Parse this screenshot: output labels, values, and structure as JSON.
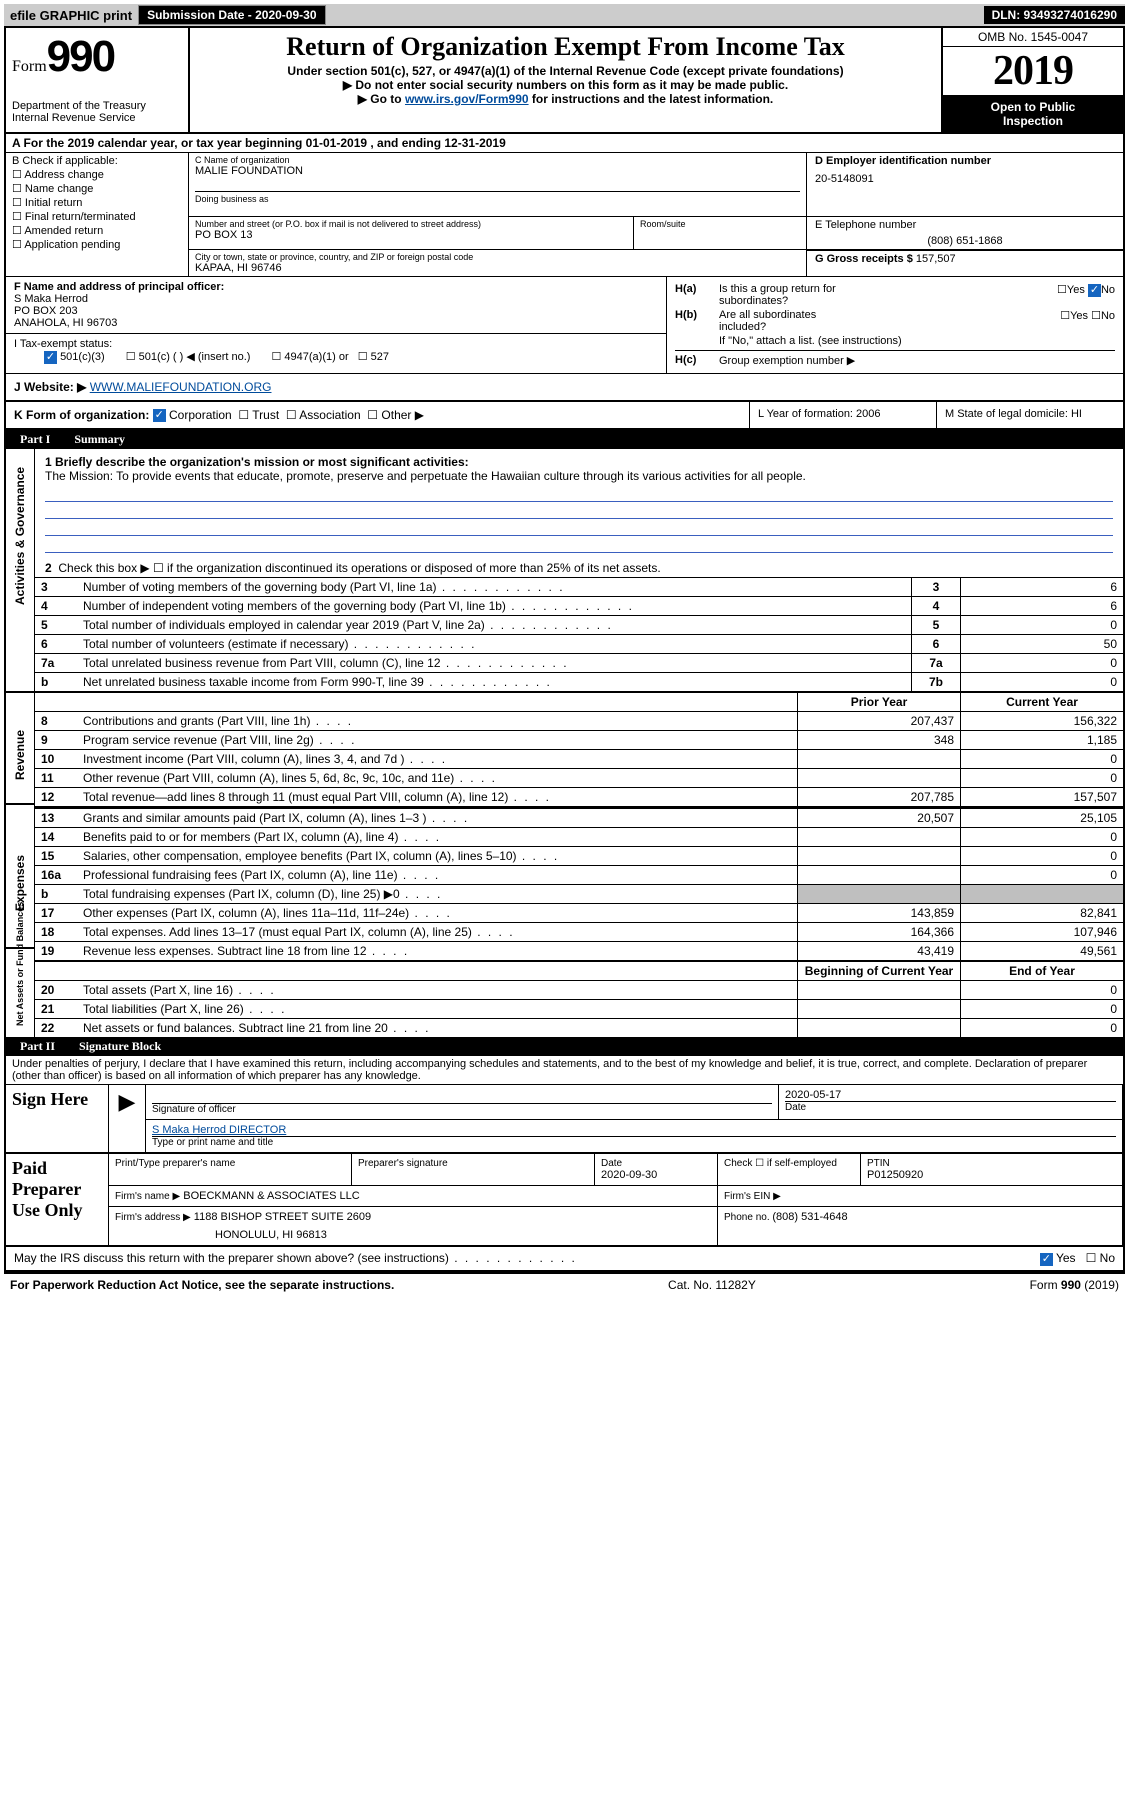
{
  "topbar": {
    "efile": "efile GRAPHIC print",
    "sub_label": "Submission Date - ",
    "sub_date": "2020-09-30",
    "dln": "DLN: 93493274016290"
  },
  "header": {
    "form_word": "Form",
    "form_num": "990",
    "dept1": "Department of the Treasury",
    "dept2": "Internal Revenue Service",
    "title": "Return of Organization Exempt From Income Tax",
    "sub1": "Under section 501(c), 527, or 4947(a)(1) of the Internal Revenue Code (except private foundations)",
    "sub2": "▶ Do not enter social security numbers on this form as it may be made public.",
    "sub3_pre": "▶ Go to ",
    "sub3_link": "www.irs.gov/Form990",
    "sub3_post": " for instructions and the latest information.",
    "omb": "OMB No. 1545-0047",
    "year": "2019",
    "open1": "Open to Public",
    "open2": "Inspection"
  },
  "rowA": "A For the 2019 calendar year, or tax year beginning 01-01-2019    , and ending 12-31-2019",
  "secB": {
    "hdr": "B Check if applicable:",
    "c1": "Address change",
    "c2": "Name change",
    "c3": "Initial return",
    "c4": "Final return/terminated",
    "c5": "Amended return",
    "c6": "Application pending"
  },
  "secC": {
    "lbl_name": "C Name of organization",
    "name": "MALIE FOUNDATION",
    "dba_lbl": "Doing business as",
    "addr_lbl": "Number and street (or P.O. box if mail is not delivered to street address)",
    "room_lbl": "Room/suite",
    "addr": "PO BOX 13",
    "city_lbl": "City or town, state or province, country, and ZIP or foreign postal code",
    "city": "KAPAA, HI  96746"
  },
  "secD": {
    "lbl": "D Employer identification number",
    "val": "20-5148091"
  },
  "secE": {
    "lbl": "E Telephone number",
    "val": "(808) 651-1868"
  },
  "secG": {
    "lbl": "G Gross receipts $ ",
    "val": "157,507"
  },
  "secF": {
    "lbl": "F  Name and address of principal officer:",
    "l1": "S Maka Herrod",
    "l2": "PO BOX 203",
    "l3": "ANAHOLA, HI  96703"
  },
  "secH": {
    "a_lbl": "H(a)",
    "a_txt1": "Is this a group return for",
    "a_txt2": "subordinates?",
    "b_lbl": "H(b)",
    "b_txt1": "Are all subordinates",
    "b_txt2": "included?",
    "note": "If \"No,\" attach a list. (see instructions)",
    "c_lbl": "H(c)",
    "c_txt": "Group exemption number ▶",
    "yes": "Yes",
    "no": "No"
  },
  "taxex": {
    "i_lbl": "I Tax-exempt status:",
    "o1": "501(c)(3)",
    "o2": "501(c) (   ) ◀ (insert no.)",
    "o3": "4947(a)(1) or",
    "o4": "527"
  },
  "secJ": {
    "lbl": "J Website: ▶",
    "val": "WWW.MALIEFOUNDATION.ORG"
  },
  "secK": {
    "lbl": "K Form of organization:",
    "o1": "Corporation",
    "o2": "Trust",
    "o3": "Association",
    "o4": "Other ▶",
    "L": "L Year of formation: 2006",
    "M": "M State of legal domicile: HI"
  },
  "partI": {
    "pi": "Part I",
    "pt": "Summary",
    "vt_ag": "Activities & Governance",
    "vt_rev": "Revenue",
    "vt_exp": "Expenses",
    "vt_na": "Net Assets or Fund Balances",
    "l1_lbl": "1  Briefly describe the organization's mission or most significant activities:",
    "l1_txt": "The Mission: To provide events that educate, promote, preserve and perpetuate the Hawaiian culture through its various activities for all people.",
    "l2": "Check this box ▶ ☐  if the organization discontinued its operations or disposed of more than 25% of its net assets.",
    "hdr_py": "Prior Year",
    "hdr_cy": "Current Year",
    "hdr_by": "Beginning of Current Year",
    "hdr_ey": "End of Year",
    "rows_ag": [
      {
        "n": "3",
        "t": "Number of voting members of the governing body (Part VI, line 1a)",
        "box": "3",
        "v": "6"
      },
      {
        "n": "4",
        "t": "Number of independent voting members of the governing body (Part VI, line 1b)",
        "box": "4",
        "v": "6"
      },
      {
        "n": "5",
        "t": "Total number of individuals employed in calendar year 2019 (Part V, line 2a)",
        "box": "5",
        "v": "0"
      },
      {
        "n": "6",
        "t": "Total number of volunteers (estimate if necessary)",
        "box": "6",
        "v": "50"
      },
      {
        "n": "7a",
        "t": "Total unrelated business revenue from Part VIII, column (C), line 12",
        "box": "7a",
        "v": "0"
      },
      {
        "n": "b",
        "t": "Net unrelated business taxable income from Form 990-T, line 39",
        "box": "7b",
        "v": "0"
      }
    ],
    "rows_rev": [
      {
        "n": "8",
        "t": "Contributions and grants (Part VIII, line 1h)",
        "py": "207,437",
        "cy": "156,322"
      },
      {
        "n": "9",
        "t": "Program service revenue (Part VIII, line 2g)",
        "py": "348",
        "cy": "1,185"
      },
      {
        "n": "10",
        "t": "Investment income (Part VIII, column (A), lines 3, 4, and 7d )",
        "py": "",
        "cy": "0"
      },
      {
        "n": "11",
        "t": "Other revenue (Part VIII, column (A), lines 5, 6d, 8c, 9c, 10c, and 11e)",
        "py": "",
        "cy": "0"
      },
      {
        "n": "12",
        "t": "Total revenue—add lines 8 through 11 (must equal Part VIII, column (A), line 12)",
        "py": "207,785",
        "cy": "157,507"
      }
    ],
    "rows_exp": [
      {
        "n": "13",
        "t": "Grants and similar amounts paid (Part IX, column (A), lines 1–3 )",
        "py": "20,507",
        "cy": "25,105"
      },
      {
        "n": "14",
        "t": "Benefits paid to or for members (Part IX, column (A), line 4)",
        "py": "",
        "cy": "0"
      },
      {
        "n": "15",
        "t": "Salaries, other compensation, employee benefits (Part IX, column (A), lines 5–10)",
        "py": "",
        "cy": "0"
      },
      {
        "n": "16a",
        "t": "Professional fundraising fees (Part IX, column (A), line 11e)",
        "py": "",
        "cy": "0"
      },
      {
        "n": "b",
        "t": "Total fundraising expenses (Part IX, column (D), line 25) ▶0",
        "py": "__grey__",
        "cy": "__grey__"
      },
      {
        "n": "17",
        "t": "Other expenses (Part IX, column (A), lines 11a–11d, 11f–24e)",
        "py": "143,859",
        "cy": "82,841"
      },
      {
        "n": "18",
        "t": "Total expenses. Add lines 13–17 (must equal Part IX, column (A), line 25)",
        "py": "164,366",
        "cy": "107,946"
      },
      {
        "n": "19",
        "t": "Revenue less expenses. Subtract line 18 from line 12",
        "py": "43,419",
        "cy": "49,561"
      }
    ],
    "rows_na": [
      {
        "n": "20",
        "t": "Total assets (Part X, line 16)",
        "py": "",
        "cy": "0"
      },
      {
        "n": "21",
        "t": "Total liabilities (Part X, line 26)",
        "py": "",
        "cy": "0"
      },
      {
        "n": "22",
        "t": "Net assets or fund balances. Subtract line 21 from line 20",
        "py": "",
        "cy": "0"
      }
    ]
  },
  "partII": {
    "pi": "Part II",
    "pt": "Signature Block",
    "decl": "Under penalties of perjury, I declare that I have examined this return, including accompanying schedules and statements, and to the best of my knowledge and belief, it is true, correct, and complete. Declaration of preparer (other than officer) is based on all information of which preparer has any knowledge.",
    "sign_here": "Sign Here",
    "sig_officer": "Signature of officer",
    "date_lbl": "Date",
    "date_val": "2020-05-17",
    "name_line": "S Maka Herrod  DIRECTOR",
    "typed": "Type or print name and title",
    "paid": "Paid Preparer Use Only",
    "p_name_lbl": "Print/Type preparer's name",
    "p_sig_lbl": "Preparer's signature",
    "p_date_lbl": "Date",
    "p_date_val": "2020-09-30",
    "p_check": "Check ☐ if self-employed",
    "ptin_lbl": "PTIN",
    "ptin_val": "P01250920",
    "firm_name_lbl": "Firm's name     ▶",
    "firm_name": "BOECKMANN & ASSOCIATES LLC",
    "firm_ein_lbl": "Firm's EIN ▶",
    "firm_addr_lbl": "Firm's address ▶",
    "firm_addr1": "1188 BISHOP STREET SUITE 2609",
    "firm_addr2": "HONOLULU, HI  96813",
    "phone_lbl": "Phone no. ",
    "phone_val": "(808) 531-4648",
    "discuss": "May the IRS discuss this return with the preparer shown above? (see instructions)"
  },
  "footer": {
    "l": "For Paperwork Reduction Act Notice, see the separate instructions.",
    "c": "Cat. No. 11282Y",
    "r": "Form 990 (2019)"
  }
}
